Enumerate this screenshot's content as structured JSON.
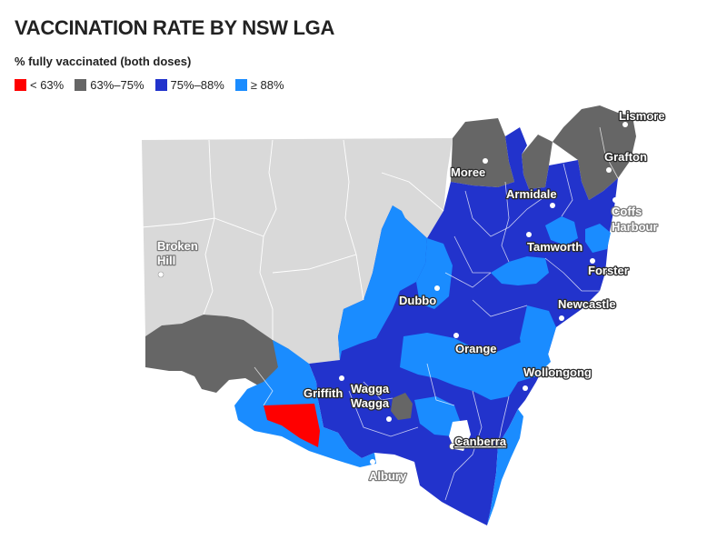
{
  "title": "VACCINATION RATE BY NSW LGA",
  "subtitle": "% fully vaccinated (both doses)",
  "legend": [
    {
      "label": "< 63%",
      "color": "#ff0000"
    },
    {
      "label": "63%–75%",
      "color": "#666666"
    },
    {
      "label": "75%–88%",
      "color": "#2233cc"
    },
    {
      "label": "≥ 88%",
      "color": "#1a8cff"
    }
  ],
  "no_data_color": "#d9d9d9",
  "cities": {
    "lismore": "Lismore",
    "grafton": "Grafton",
    "moree": "Moree",
    "armidale": "Armidale",
    "coffs": "Coffs",
    "harbour": "Harbour",
    "broken": "Broken",
    "hill": "Hill",
    "tamworth": "Tamworth",
    "forster": "Forster",
    "dubbo": "Dubbo",
    "newcastle": "Newcastle",
    "orange": "Orange",
    "wollongong": "Wollongong",
    "griffith": "Griffith",
    "wagga1": "Wagga",
    "wagga2": "Wagga",
    "canberra": "Canberra",
    "albury": "Albury"
  }
}
